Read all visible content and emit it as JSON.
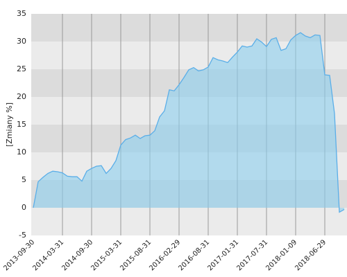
{
  "chart_data": {
    "type": "area",
    "y_label": "[Zmiany %]",
    "categories": [
      "2013-09-30",
      null,
      null,
      null,
      null,
      null,
      "2014-03-31",
      null,
      null,
      null,
      null,
      null,
      "2014-09-30",
      null,
      null,
      null,
      null,
      null,
      "2015-03-31",
      null,
      null,
      null,
      null,
      null,
      "2015-08-31",
      null,
      null,
      null,
      null,
      null,
      "2016-02-29",
      null,
      null,
      null,
      null,
      null,
      "2016-08-31",
      null,
      null,
      null,
      null,
      null,
      "2017-01-31",
      null,
      null,
      null,
      null,
      null,
      "2017-07-31",
      null,
      null,
      null,
      null,
      null,
      "2018-01-09",
      null,
      null,
      null,
      null,
      null,
      "2018-06-29",
      null,
      null,
      null,
      null
    ],
    "values": [
      0,
      4.7,
      5.5,
      6.2,
      6.6,
      6.5,
      6.3,
      5.7,
      5.6,
      5.6,
      4.8,
      6.6,
      7.1,
      7.5,
      7.6,
      6.2,
      7.1,
      8.5,
      11.3,
      12.3,
      12.6,
      13.1,
      12.5,
      13.0,
      13.1,
      13.9,
      16.4,
      17.5,
      21.3,
      21.1,
      22.2,
      23.5,
      24.9,
      25.3,
      24.7,
      24.9,
      25.4,
      27.1,
      26.7,
      26.5,
      26.2,
      27.2,
      28.1,
      29.2,
      29.0,
      29.2,
      30.5,
      29.9,
      29.1,
      30.4,
      30.7,
      28.4,
      28.7,
      30.3,
      31.1,
      31.6,
      31.0,
      30.7,
      31.2,
      31.1,
      24.0,
      23.9,
      17.0,
      -0.8,
      -0.3
    ],
    "color": "#5aaee8",
    "ylim": [
      -5,
      35
    ],
    "yticks": [
      -5,
      0,
      5,
      10,
      15,
      20,
      25,
      30,
      35
    ],
    "band_colors": [
      "#ebebeb",
      "#dcdcdc"
    ],
    "grid": true
  }
}
